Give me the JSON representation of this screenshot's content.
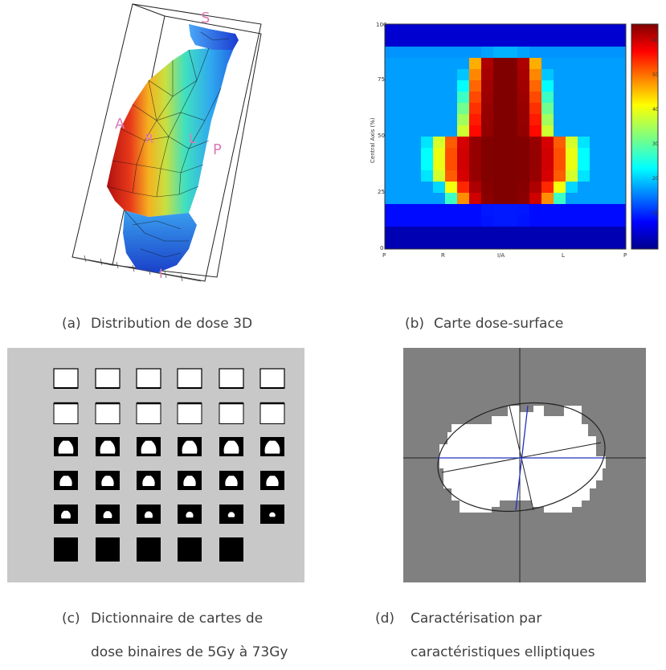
{
  "panel_a": {
    "caption_letter": "(a)",
    "caption_text": "Distribution de dose 3D",
    "labels": {
      "S": "S",
      "A": "A",
      "R": "R",
      "L": "L",
      "P": "P",
      "I": "I"
    }
  },
  "panel_b": {
    "caption_letter": "(b)",
    "caption_text": "Carte dose-surface",
    "ylabel": "Central Axis (%)",
    "y_ticks": [
      "100",
      "75",
      "50",
      "25",
      "0"
    ],
    "x_ticks": [
      "P",
      "R",
      "I/A",
      "L",
      "P"
    ],
    "colorbar_ticks": [
      "60",
      "50",
      "40",
      "30",
      "20",
      "10"
    ]
  },
  "panel_c": {
    "caption_letter": "(c)",
    "caption_line1": "Dictionnaire de cartes de",
    "caption_line2": "dose binaires de 5Gy à 73Gy"
  },
  "panel_d": {
    "caption_letter": "(d)",
    "caption_line1": "Caractérisation par",
    "caption_line2": "caractéristiques elliptiques"
  },
  "colors": {
    "jet_red": "#8b0000",
    "jet_blue": "#00008b",
    "panel_c_bg": "#c8c8c8",
    "panel_d_bg": "#808080",
    "caption_text": "#404040"
  }
}
